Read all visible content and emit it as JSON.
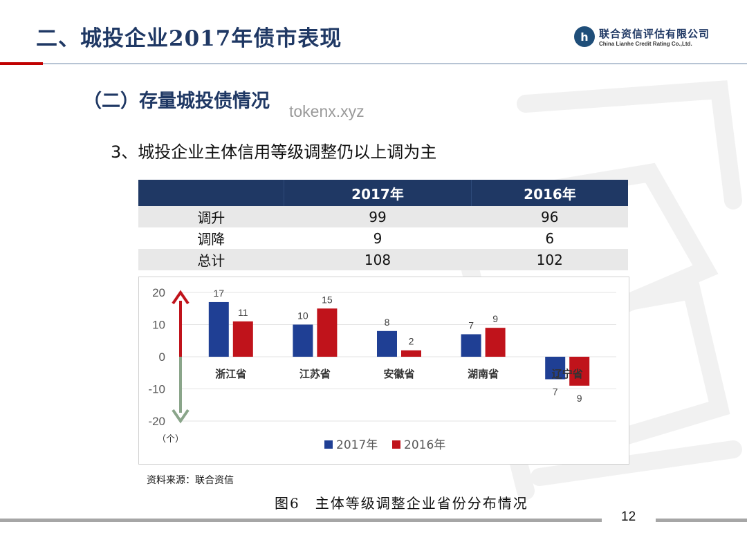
{
  "header": {
    "title": "二、城投企业2017年债市表现",
    "logo": {
      "mark": "h",
      "name_cn": "联合资信评估有限公司",
      "name_en": "China Lianhe Credit Rating Co.,Ltd."
    }
  },
  "section": {
    "heading": "（二）存量城投债情况",
    "overlay_text": "tokenx.xyz"
  },
  "subtitle": "3、城投企业主体信用等级调整仍以上调为主",
  "table": {
    "headers": [
      "",
      "2017年",
      "2016年"
    ],
    "rows": [
      [
        "调升",
        "99",
        "96"
      ],
      [
        "调降",
        "9",
        "6"
      ],
      [
        "总计",
        "108",
        "102"
      ]
    ]
  },
  "chart_data": {
    "type": "bar",
    "categories": [
      "浙江省",
      "江苏省",
      "安徽省",
      "湖南省",
      "辽宁省"
    ],
    "series": [
      {
        "name": "2017年",
        "values": [
          17,
          10,
          8,
          7,
          -7
        ],
        "labels": [
          "17",
          "10",
          "8",
          "7",
          "7"
        ],
        "color": "#1f3f94"
      },
      {
        "name": "2016年",
        "values": [
          11,
          15,
          2,
          9,
          -9
        ],
        "labels": [
          "11",
          "15",
          "2",
          "9",
          "9"
        ],
        "color": "#c0131b"
      }
    ],
    "ylim": [
      -20,
      20
    ],
    "yticks": [
      20,
      10,
      0,
      -10,
      -20
    ],
    "unit_label": "（个）",
    "legend_position": "bottom",
    "arrows": {
      "up_color": "#c0131b",
      "down_color": "#8aa58a"
    }
  },
  "source_note": "资料来源：联合资信",
  "caption": "图6　主体等级调整企业省份分布情况",
  "page_number": "12",
  "colors": {
    "navy": "#1f3864",
    "accent_red": "#c00000"
  }
}
